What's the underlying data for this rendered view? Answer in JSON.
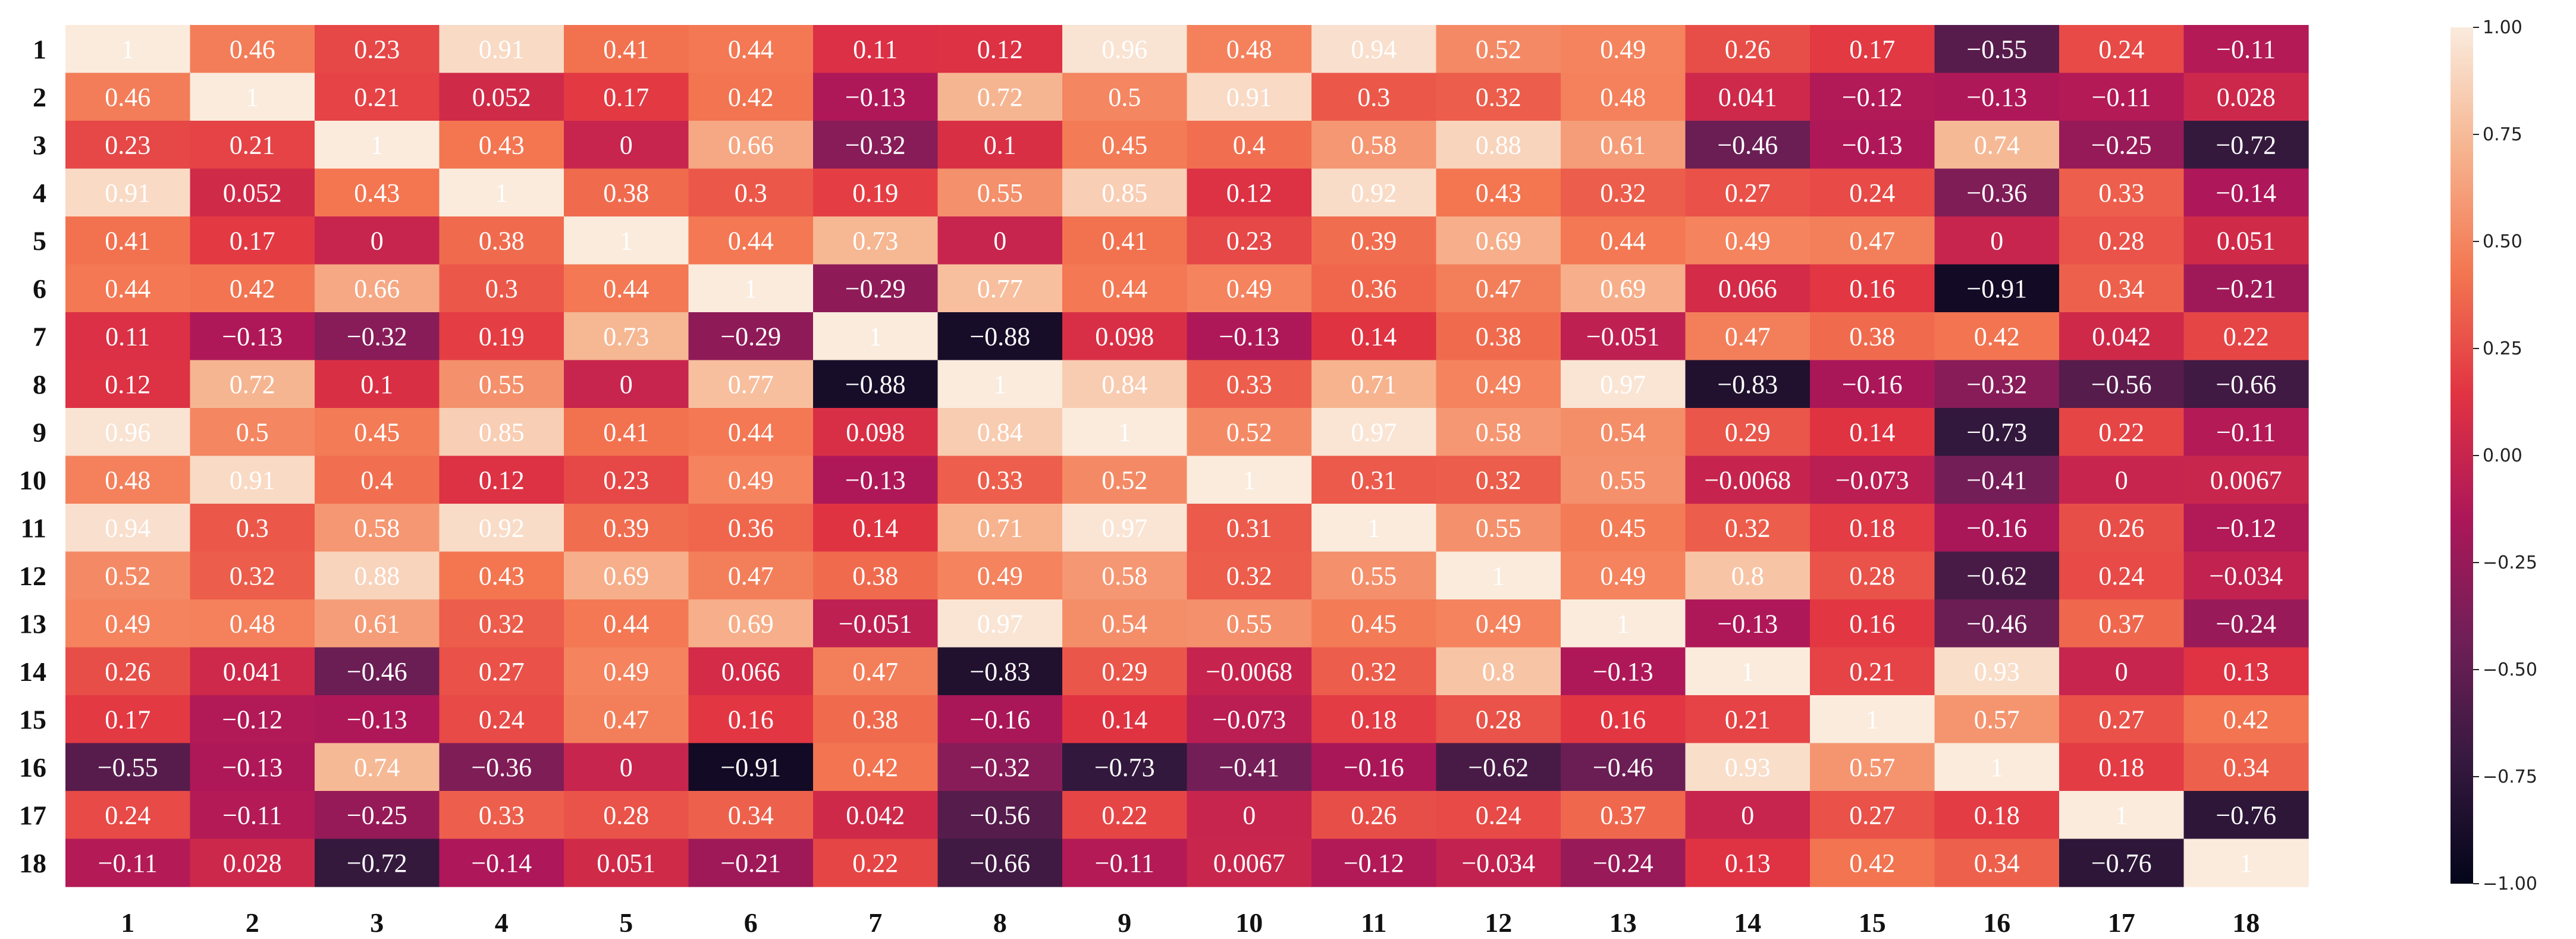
{
  "chart_data": {
    "type": "heatmap",
    "title": "",
    "xlabel": "",
    "ylabel": "",
    "x_ticks": [
      "1",
      "2",
      "3",
      "4",
      "5",
      "6",
      "7",
      "8",
      "9",
      "10",
      "11",
      "12",
      "13",
      "14",
      "15",
      "16",
      "17",
      "18"
    ],
    "y_ticks": [
      "1",
      "2",
      "3",
      "4",
      "5",
      "6",
      "7",
      "8",
      "9",
      "10",
      "11",
      "12",
      "13",
      "14",
      "15",
      "16",
      "17",
      "18"
    ],
    "colormap": "rocket",
    "vmin": -1.0,
    "vmax": 1.0,
    "colorbar_ticks": [
      "1.00",
      "0.75",
      "0.50",
      "0.25",
      "0.00",
      "−0.25",
      "−0.50",
      "−0.75",
      "−1.00"
    ],
    "colorbar_tick_values": [
      1.0,
      0.75,
      0.5,
      0.25,
      0.0,
      -0.25,
      -0.5,
      -0.75,
      -1.0
    ],
    "values": [
      [
        1,
        0.46,
        0.23,
        0.91,
        0.41,
        0.44,
        0.11,
        0.12,
        0.96,
        0.48,
        0.94,
        0.52,
        0.49,
        0.26,
        0.17,
        -0.55,
        0.24,
        -0.11
      ],
      [
        0.46,
        1,
        0.21,
        0.052,
        0.17,
        0.42,
        -0.13,
        0.72,
        0.5,
        0.91,
        0.3,
        0.32,
        0.48,
        0.041,
        -0.12,
        -0.13,
        -0.11,
        0.028
      ],
      [
        0.23,
        0.21,
        1,
        0.43,
        0,
        0.66,
        -0.32,
        0.1,
        0.45,
        0.4,
        0.58,
        0.88,
        0.61,
        -0.46,
        -0.13,
        0.74,
        -0.25,
        -0.72
      ],
      [
        0.91,
        0.052,
        0.43,
        1,
        0.38,
        0.3,
        0.19,
        0.55,
        0.85,
        0.12,
        0.92,
        0.43,
        0.32,
        0.27,
        0.24,
        -0.36,
        0.33,
        -0.14
      ],
      [
        0.41,
        0.17,
        0,
        0.38,
        1,
        0.44,
        0.73,
        0,
        0.41,
        0.23,
        0.39,
        0.69,
        0.44,
        0.49,
        0.47,
        0,
        0.28,
        0.051
      ],
      [
        0.44,
        0.42,
        0.66,
        0.3,
        0.44,
        1,
        -0.29,
        0.77,
        0.44,
        0.49,
        0.36,
        0.47,
        0.69,
        0.066,
        0.16,
        -0.91,
        0.34,
        -0.21
      ],
      [
        0.11,
        -0.13,
        -0.32,
        0.19,
        0.73,
        -0.29,
        1,
        -0.88,
        0.098,
        -0.13,
        0.14,
        0.38,
        -0.051,
        0.47,
        0.38,
        0.42,
        0.042,
        0.22
      ],
      [
        0.12,
        0.72,
        0.1,
        0.55,
        0,
        0.77,
        -0.88,
        1,
        0.84,
        0.33,
        0.71,
        0.49,
        0.97,
        -0.83,
        -0.16,
        -0.32,
        -0.56,
        -0.66
      ],
      [
        0.96,
        0.5,
        0.45,
        0.85,
        0.41,
        0.44,
        0.098,
        0.84,
        1,
        0.52,
        0.97,
        0.58,
        0.54,
        0.29,
        0.14,
        -0.73,
        0.22,
        -0.11
      ],
      [
        0.48,
        0.91,
        0.4,
        0.12,
        0.23,
        0.49,
        -0.13,
        0.33,
        0.52,
        1,
        0.31,
        0.32,
        0.55,
        -0.0068,
        -0.073,
        -0.41,
        0,
        0.0067
      ],
      [
        0.94,
        0.3,
        0.58,
        0.92,
        0.39,
        0.36,
        0.14,
        0.71,
        0.97,
        0.31,
        1,
        0.55,
        0.45,
        0.32,
        0.18,
        -0.16,
        0.26,
        -0.12
      ],
      [
        0.52,
        0.32,
        0.88,
        0.43,
        0.69,
        0.47,
        0.38,
        0.49,
        0.58,
        0.32,
        0.55,
        1,
        0.49,
        0.8,
        0.28,
        -0.62,
        0.24,
        -0.034
      ],
      [
        0.49,
        0.48,
        0.61,
        0.32,
        0.44,
        0.69,
        -0.051,
        0.97,
        0.54,
        0.55,
        0.45,
        0.49,
        1,
        -0.13,
        0.16,
        -0.46,
        0.37,
        -0.24
      ],
      [
        0.26,
        0.041,
        -0.46,
        0.27,
        0.49,
        0.066,
        0.47,
        -0.83,
        0.29,
        -0.0068,
        0.32,
        0.8,
        -0.13,
        1,
        0.21,
        0.93,
        0,
        0.13
      ],
      [
        0.17,
        -0.12,
        -0.13,
        0.24,
        0.47,
        0.16,
        0.38,
        -0.16,
        0.14,
        -0.073,
        0.18,
        0.28,
        0.16,
        0.21,
        1,
        0.57,
        0.27,
        0.42
      ],
      [
        -0.55,
        -0.13,
        0.74,
        -0.36,
        0,
        -0.91,
        0.42,
        -0.32,
        -0.73,
        -0.41,
        -0.16,
        -0.62,
        -0.46,
        0.93,
        0.57,
        1,
        0.18,
        0.34
      ],
      [
        0.24,
        -0.11,
        -0.25,
        0.33,
        0.28,
        0.34,
        0.042,
        -0.56,
        0.22,
        0,
        0.26,
        0.24,
        0.37,
        0,
        0.27,
        0.18,
        1,
        -0.76
      ],
      [
        -0.11,
        0.028,
        -0.72,
        -0.14,
        0.051,
        -0.21,
        0.22,
        -0.66,
        -0.11,
        0.0067,
        -0.12,
        -0.034,
        -0.24,
        0.13,
        0.42,
        0.34,
        -0.76,
        1
      ]
    ]
  },
  "colors": {
    "rocket_stops": [
      "#03051a",
      "#35193e",
      "#701f57",
      "#ad1759",
      "#e13342",
      "#f37651",
      "#f6b48f",
      "#faebdd"
    ],
    "annotation_light": "#ffffff",
    "annotation_dark": "#111111",
    "tick": "#111111"
  }
}
